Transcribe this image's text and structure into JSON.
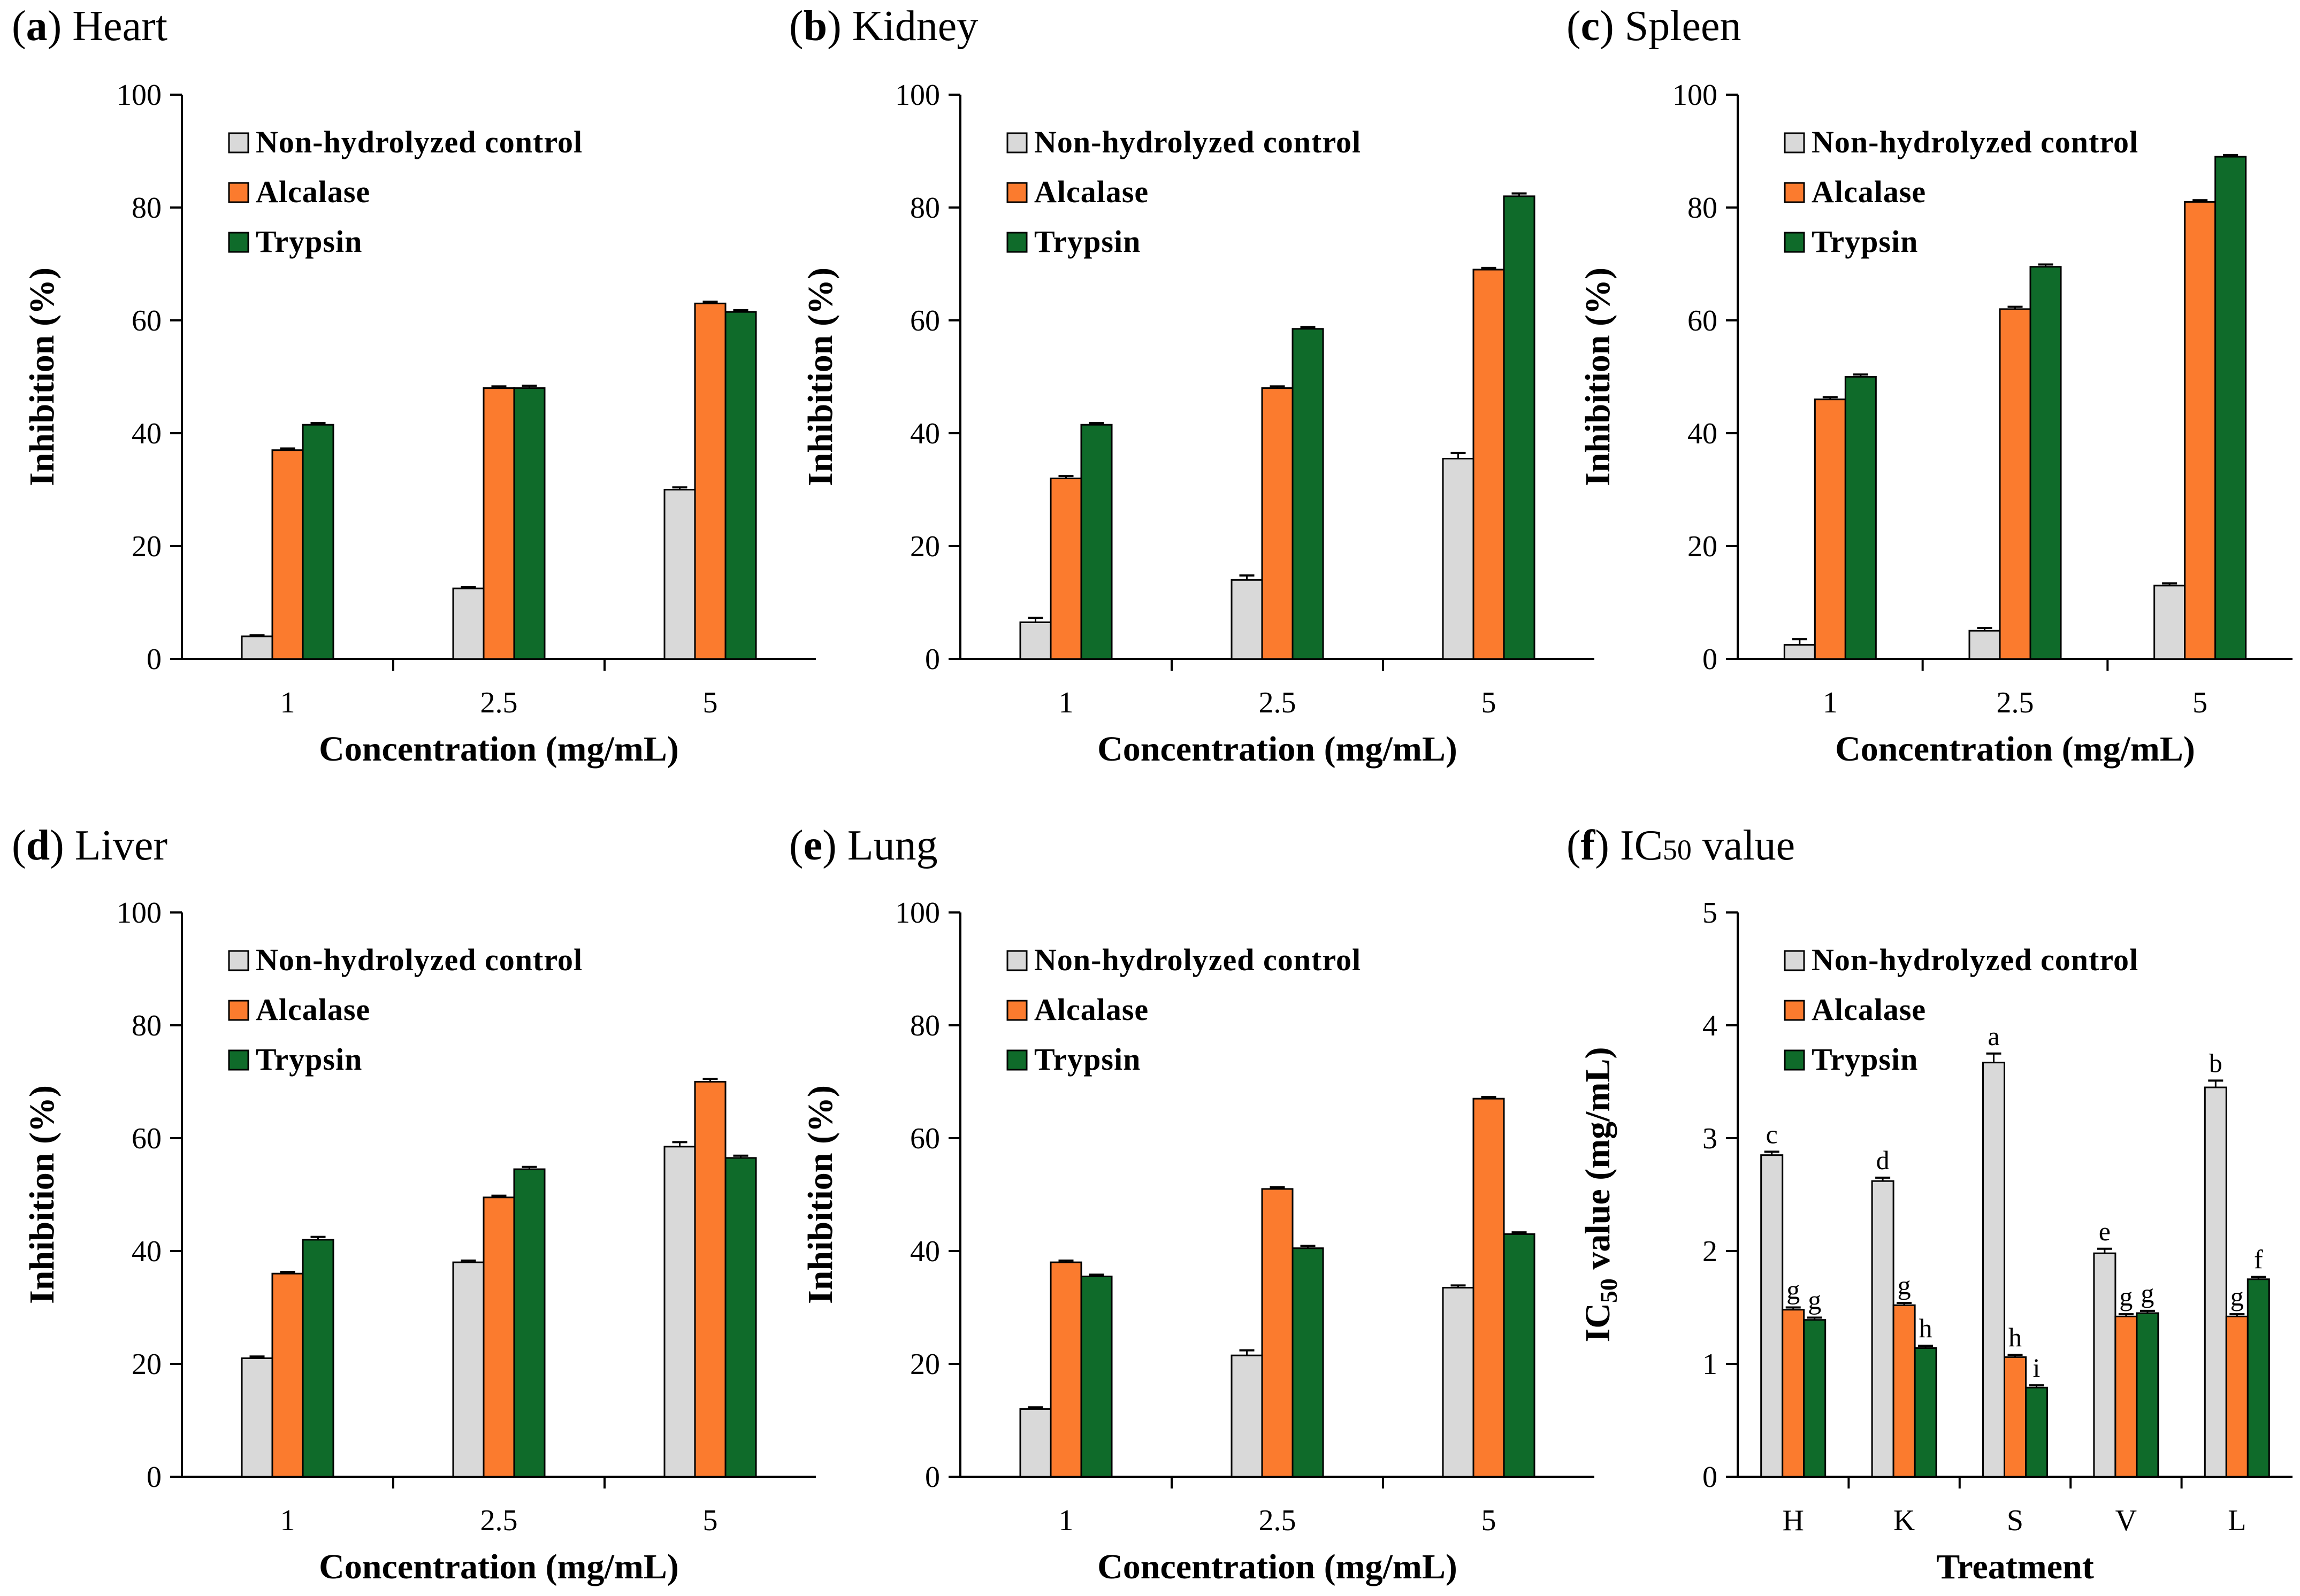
{
  "colors": {
    "Non-hydrolyzed control": "#d9d9d9",
    "Alcalase": "#fb7b2e",
    "Trypsin": "#0f6b2a"
  },
  "chart_data": [
    {
      "type": "bar",
      "label": "a",
      "title": "Heart",
      "xlabel": "Concentration (mg/mL)",
      "ylabel": "Inhibition (%)",
      "ylim": [
        0,
        100
      ],
      "yticks": [
        0,
        20,
        40,
        60,
        80,
        100
      ],
      "categories": [
        "1",
        "2.5",
        "5"
      ],
      "series": [
        {
          "name": "Non-hydrolyzed control",
          "values": [
            4.0,
            12.5,
            30.0
          ],
          "errors": [
            0.2,
            0.2,
            0.4
          ]
        },
        {
          "name": "Alcalase",
          "values": [
            37.0,
            48.0,
            63.0
          ],
          "errors": [
            0.3,
            0.3,
            0.3
          ]
        },
        {
          "name": "Trypsin",
          "values": [
            41.5,
            48.0,
            61.5
          ],
          "errors": [
            0.3,
            0.4,
            0.3
          ]
        }
      ]
    },
    {
      "type": "bar",
      "label": "b",
      "title": "Kidney",
      "xlabel": "Concentration (mg/mL)",
      "ylabel": "Inhibition (%)",
      "ylim": [
        0,
        100
      ],
      "yticks": [
        0,
        20,
        40,
        60,
        80,
        100
      ],
      "categories": [
        "1",
        "2.5",
        "5"
      ],
      "series": [
        {
          "name": "Non-hydrolyzed control",
          "values": [
            6.5,
            14.0,
            35.5
          ],
          "errors": [
            0.8,
            0.8,
            1.0
          ]
        },
        {
          "name": "Alcalase",
          "values": [
            32.0,
            48.0,
            69.0
          ],
          "errors": [
            0.4,
            0.3,
            0.3
          ]
        },
        {
          "name": "Trypsin",
          "values": [
            41.5,
            58.5,
            82.0
          ],
          "errors": [
            0.3,
            0.3,
            0.5
          ]
        }
      ]
    },
    {
      "type": "bar",
      "label": "c",
      "title": "Spleen",
      "xlabel": "Concentration (mg/mL)",
      "ylabel": "Inhibition (%)",
      "ylim": [
        0,
        100
      ],
      "yticks": [
        0,
        20,
        40,
        60,
        80,
        100
      ],
      "categories": [
        "1",
        "2.5",
        "5"
      ],
      "series": [
        {
          "name": "Non-hydrolyzed control",
          "values": [
            2.5,
            5.0,
            13.0
          ],
          "errors": [
            1.0,
            0.5,
            0.4
          ]
        },
        {
          "name": "Alcalase",
          "values": [
            46.0,
            62.0,
            81.0
          ],
          "errors": [
            0.4,
            0.4,
            0.3
          ]
        },
        {
          "name": "Trypsin",
          "values": [
            50.0,
            69.5,
            89.0
          ],
          "errors": [
            0.4,
            0.4,
            0.3
          ]
        }
      ]
    },
    {
      "type": "bar",
      "label": "d",
      "title": "Liver",
      "xlabel": "Concentration (mg/mL)",
      "ylabel": "Inhibition (%)",
      "ylim": [
        0,
        100
      ],
      "yticks": [
        0,
        20,
        40,
        60,
        80,
        100
      ],
      "categories": [
        "1",
        "2.5",
        "5"
      ],
      "series": [
        {
          "name": "Non-hydrolyzed control",
          "values": [
            21.0,
            38.0,
            58.5
          ],
          "errors": [
            0.3,
            0.3,
            0.8
          ]
        },
        {
          "name": "Alcalase",
          "values": [
            36.0,
            49.5,
            70.0
          ],
          "errors": [
            0.3,
            0.3,
            0.5
          ]
        },
        {
          "name": "Trypsin",
          "values": [
            42.0,
            54.5,
            56.5
          ],
          "errors": [
            0.5,
            0.4,
            0.4
          ]
        }
      ]
    },
    {
      "type": "bar",
      "label": "e",
      "title": "Lung",
      "xlabel": "Concentration (mg/mL)",
      "ylabel": "Inhibition (%)",
      "ylim": [
        0,
        100
      ],
      "yticks": [
        0,
        20,
        40,
        60,
        80,
        100
      ],
      "categories": [
        "1",
        "2.5",
        "5"
      ],
      "series": [
        {
          "name": "Non-hydrolyzed control",
          "values": [
            12.0,
            21.5,
            33.5
          ],
          "errors": [
            0.3,
            0.9,
            0.4
          ]
        },
        {
          "name": "Alcalase",
          "values": [
            38.0,
            51.0,
            67.0
          ],
          "errors": [
            0.3,
            0.3,
            0.3
          ]
        },
        {
          "name": "Trypsin",
          "values": [
            35.5,
            40.5,
            43.0
          ],
          "errors": [
            0.3,
            0.4,
            0.3
          ]
        }
      ]
    },
    {
      "type": "bar",
      "label": "f",
      "title": "IC",
      "title_sub": "50",
      "title_suffix": " value",
      "xlabel": "Treatment",
      "ylabel": "IC",
      "ylabel_sub": "50",
      "ylabel_suffix": " value (mg/mL)",
      "ylim": [
        0,
        5
      ],
      "yticks": [
        0,
        1,
        2,
        3,
        4,
        5
      ],
      "categories": [
        "H",
        "K",
        "S",
        "V",
        "L"
      ],
      "series": [
        {
          "name": "Non-hydrolyzed control",
          "values": [
            2.85,
            2.62,
            3.67,
            1.98,
            3.45
          ],
          "errors": [
            0.03,
            0.03,
            0.08,
            0.04,
            0.06
          ],
          "letters": [
            "c",
            "d",
            "a",
            "e",
            "b"
          ]
        },
        {
          "name": "Alcalase",
          "values": [
            1.48,
            1.52,
            1.06,
            1.42,
            1.42
          ],
          "errors": [
            0.02,
            0.02,
            0.02,
            0.02,
            0.02
          ],
          "letters": [
            "g",
            "g",
            "h",
            "g",
            "g"
          ]
        },
        {
          "name": "Trypsin",
          "values": [
            1.39,
            1.14,
            0.79,
            1.45,
            1.75
          ],
          "errors": [
            0.02,
            0.02,
            0.02,
            0.02,
            0.02
          ],
          "letters": [
            "g",
            "h",
            "i",
            "g",
            "f"
          ]
        }
      ]
    }
  ]
}
